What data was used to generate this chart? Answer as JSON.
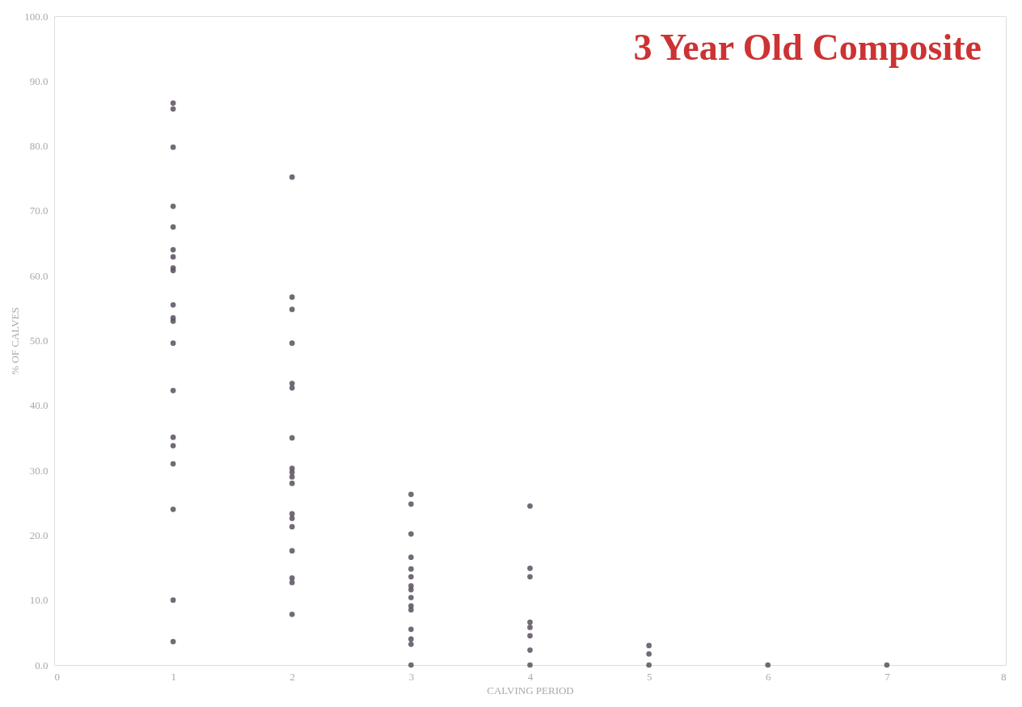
{
  "chart_data": {
    "type": "scatter",
    "title": "3 Year Old Composite",
    "xlabel": "CALVING PERIOD",
    "ylabel": "% OF CALVES",
    "series": [
      {
        "color": "#5a5060",
        "x": [
          1,
          1,
          1,
          1,
          1,
          1,
          1,
          1,
          1,
          1,
          1,
          1,
          1,
          1,
          1,
          1,
          1,
          1,
          1,
          1,
          2,
          2,
          2,
          2,
          2,
          2,
          2,
          2,
          2,
          2,
          2,
          2,
          2,
          2,
          2,
          2,
          2,
          2,
          3,
          3,
          3,
          3,
          3,
          3,
          3,
          3,
          3,
          3,
          3,
          3,
          3,
          3,
          3,
          4,
          4,
          4,
          4,
          4,
          4,
          4,
          4,
          5,
          5,
          5,
          6,
          7
        ],
        "values": [
          86.6,
          85.7,
          79.8,
          70.7,
          67.5,
          64.0,
          62.9,
          61.2,
          60.8,
          55.5,
          53.5,
          53.0,
          49.6,
          42.3,
          35.1,
          33.8,
          31.0,
          24.0,
          10.0,
          3.6,
          75.2,
          56.7,
          54.8,
          49.6,
          43.4,
          42.7,
          35.0,
          30.3,
          29.7,
          29.0,
          28.0,
          23.3,
          22.6,
          21.3,
          17.6,
          13.4,
          12.7,
          7.8,
          26.3,
          24.8,
          20.2,
          16.6,
          14.8,
          13.6,
          12.2,
          11.6,
          10.4,
          9.1,
          8.5,
          5.5,
          4.0,
          3.2,
          0.0,
          24.5,
          14.9,
          13.6,
          6.6,
          5.8,
          4.5,
          2.3,
          0.0,
          3.0,
          1.7,
          0.0,
          0.0,
          0.0
        ]
      }
    ],
    "xlim": [
      0,
      8
    ],
    "xticks": [
      0,
      1,
      2,
      3,
      4,
      5,
      6,
      7,
      8
    ],
    "ylim": [
      0,
      100
    ],
    "yticks": [
      {
        "value": 0,
        "label": "0.0"
      },
      {
        "value": 10,
        "label": "10.0"
      },
      {
        "value": 20,
        "label": "20.0"
      },
      {
        "value": 30,
        "label": "30.0"
      },
      {
        "value": 40,
        "label": "40.0"
      },
      {
        "value": 50,
        "label": "50.0"
      },
      {
        "value": 60,
        "label": "60.0"
      },
      {
        "value": 70,
        "label": "70.0"
      },
      {
        "value": 80,
        "label": "80.0"
      },
      {
        "value": 90,
        "label": "90.0"
      },
      {
        "value": 100,
        "label": "100.0"
      }
    ],
    "grid": false,
    "marker": "circle"
  }
}
